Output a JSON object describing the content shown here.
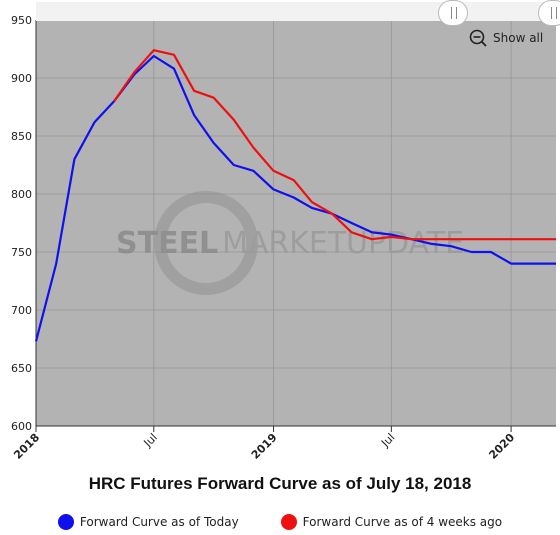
{
  "chart_data": {
    "type": "line",
    "title": "HRC Futures Forward Curve as of July 18, 2018",
    "ylim": [
      600,
      950
    ],
    "y_ticks": [
      600,
      650,
      700,
      750,
      800,
      850,
      900,
      950
    ],
    "x_range": [
      "2018-01-01",
      "2020-03-10"
    ],
    "x_ticks": [
      {
        "date": "2018-01-01",
        "label": "2018",
        "bold": true
      },
      {
        "date": "2018-07-01",
        "label": "Jul",
        "bold": false
      },
      {
        "date": "2019-01-01",
        "label": "2019",
        "bold": true
      },
      {
        "date": "2019-07-01",
        "label": "Jul",
        "bold": false
      },
      {
        "date": "2020-01-01",
        "label": "2020",
        "bold": true
      }
    ],
    "grid": true,
    "legend_position": "bottom-center",
    "series": [
      {
        "name": "Forward Curve as of Today",
        "color": "#1010ee",
        "points": [
          [
            "2018-01-01",
            673
          ],
          [
            "2018-02-01",
            740
          ],
          [
            "2018-03-01",
            830
          ],
          [
            "2018-04-01",
            862
          ],
          [
            "2018-05-01",
            880
          ],
          [
            "2018-06-01",
            903
          ],
          [
            "2018-07-01",
            919
          ],
          [
            "2018-08-01",
            908
          ],
          [
            "2018-09-01",
            868
          ],
          [
            "2018-10-01",
            844
          ],
          [
            "2018-11-01",
            825
          ],
          [
            "2018-12-01",
            820
          ],
          [
            "2019-01-01",
            804
          ],
          [
            "2019-02-01",
            797
          ],
          [
            "2019-03-01",
            788
          ],
          [
            "2019-04-01",
            783
          ],
          [
            "2019-05-01",
            775
          ],
          [
            "2019-06-01",
            767
          ],
          [
            "2019-07-01",
            765
          ],
          [
            "2019-08-01",
            761
          ],
          [
            "2019-09-01",
            757
          ],
          [
            "2019-10-01",
            755
          ],
          [
            "2019-11-01",
            750
          ],
          [
            "2019-12-01",
            750
          ],
          [
            "2020-01-01",
            740
          ],
          [
            "2020-02-01",
            740
          ],
          [
            "2020-03-10",
            740
          ]
        ]
      },
      {
        "name": "Forward Curve as of 4 weeks ago",
        "color": "#ee1010",
        "points": [
          [
            "2018-05-01",
            880
          ],
          [
            "2018-06-01",
            905
          ],
          [
            "2018-07-01",
            924
          ],
          [
            "2018-08-01",
            920
          ],
          [
            "2018-09-01",
            889
          ],
          [
            "2018-10-01",
            883
          ],
          [
            "2018-11-01",
            864
          ],
          [
            "2018-12-01",
            840
          ],
          [
            "2019-01-01",
            820
          ],
          [
            "2019-02-01",
            812
          ],
          [
            "2019-03-01",
            793
          ],
          [
            "2019-04-01",
            783
          ],
          [
            "2019-05-01",
            767
          ],
          [
            "2019-06-01",
            761
          ],
          [
            "2019-07-01",
            763
          ],
          [
            "2019-08-01",
            761
          ],
          [
            "2019-09-01",
            761
          ],
          [
            "2019-10-01",
            761
          ],
          [
            "2019-11-01",
            761
          ],
          [
            "2019-12-01",
            761
          ],
          [
            "2020-01-01",
            761
          ],
          [
            "2020-02-01",
            761
          ],
          [
            "2020-03-10",
            761
          ]
        ]
      }
    ]
  },
  "controls": {
    "show_all_label": "Show all"
  },
  "watermark": {
    "word1": "STEEL",
    "word2": "MARKET",
    "word3": "UPDATE"
  },
  "colors": {
    "plot_background": "#b3b3b3",
    "grid": "#9c9c9c"
  }
}
